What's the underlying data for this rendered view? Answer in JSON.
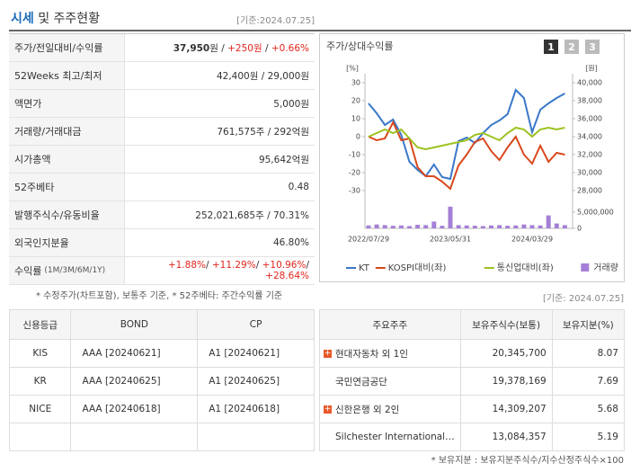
{
  "header": {
    "title_highlight": "시세",
    "title_rest": "및 주주현황",
    "date": "[기준:2024.07.25]"
  },
  "summary": {
    "rows": [
      {
        "label": "주가/전일대비/수익률",
        "value": [
          {
            "text": "37,950",
            "style": "bold"
          },
          {
            "text": "원 / "
          },
          {
            "text": "+250원",
            "style": "up"
          },
          {
            "text": " / "
          },
          {
            "text": "+0.66%",
            "style": "up"
          }
        ]
      },
      {
        "label": "52Weeks 최고/최저",
        "value": [
          {
            "text": "42,400원 / 29,000원"
          }
        ]
      },
      {
        "label": "액면가",
        "value": [
          {
            "text": "5,000원"
          }
        ]
      },
      {
        "label": "거래량/거래대금",
        "value": [
          {
            "text": "761,575주 / 292억원"
          }
        ]
      },
      {
        "label": "시가총액",
        "value": [
          {
            "text": "95,642억원"
          }
        ]
      },
      {
        "label": "52주베타",
        "value": [
          {
            "text": "0.48"
          }
        ]
      },
      {
        "label": "발행주식수/유동비율",
        "value": [
          {
            "text": "252,021,685주 / 70.31%"
          }
        ]
      },
      {
        "label": "외국인지분율",
        "value": [
          {
            "text": "46.80%"
          }
        ]
      },
      {
        "label": "수익률",
        "sublabel": "(1M/3M/6M/1Y)",
        "value": [
          {
            "text": "+1.88%",
            "style": "up"
          },
          {
            "text": "/ "
          },
          {
            "text": "+11.29%",
            "style": "up"
          },
          {
            "text": "/ "
          },
          {
            "text": "+10.96%",
            "style": "up"
          },
          {
            "text": "/ "
          },
          {
            "text": "+28.64%",
            "style": "up"
          }
        ]
      }
    ],
    "note": "* 수정주가(차트포함), 보통주 기준, * 52주베타: 주간수익률 기준",
    "date": "[기준: 2024.07.25]"
  },
  "chart_data": {
    "type": "line",
    "title": "주가/상대수익률",
    "tabs": [
      "1",
      "2",
      "3"
    ],
    "y_unit": "[%]",
    "y2_unit": "[원]",
    "categories": [
      "2022/07/29",
      null,
      null,
      null,
      null,
      null,
      null,
      null,
      null,
      null,
      "2023/05/31",
      null,
      null,
      null,
      null,
      null,
      null,
      null,
      null,
      null,
      "2024/03/29",
      null,
      null,
      null,
      null
    ],
    "ylim": [
      -35,
      35
    ],
    "yticks": [
      30,
      20,
      10,
      0,
      -10,
      -20,
      -30
    ],
    "y2lim": [
      27000,
      41000
    ],
    "y2ticks": [
      {
        "value": 40000,
        "label": "40,000"
      },
      {
        "value": 38000,
        "label": "38,000"
      },
      {
        "value": 36000,
        "label": "36,000"
      },
      {
        "value": 34000,
        "label": "34,000"
      },
      {
        "value": 32000,
        "label": "32,000"
      },
      {
        "value": 30000,
        "label": "30,000"
      },
      {
        "value": 28000,
        "label": "28,000"
      }
    ],
    "y3lim": [
      0,
      5000000
    ],
    "y3ticks": [
      {
        "value": 5000000,
        "label": "5,000,000"
      },
      0
    ],
    "series": [
      {
        "name": "KT",
        "color": "#3a78c9",
        "axis": "y2",
        "values": [
          37700,
          36600,
          35300,
          35900,
          34200,
          31200,
          30300,
          29600,
          30900,
          29500,
          29300,
          33500,
          33900,
          33300,
          34400,
          35300,
          35800,
          36500,
          39200,
          38300,
          34500,
          37000,
          37700,
          38300,
          38800
        ]
      },
      {
        "name": "KOSPI대비(좌)",
        "color": "#d9481c",
        "axis": "y",
        "values": [
          0,
          -2,
          -1,
          8,
          -2,
          -1,
          -17,
          -22,
          -22,
          -25,
          -29,
          -16,
          -10,
          -3,
          -1,
          -8,
          -13,
          -6,
          0,
          -10,
          -15,
          -5,
          -14,
          -9,
          -10
        ]
      },
      {
        "name": "통신업대비(좌)",
        "color": "#9cc21f",
        "axis": "y",
        "values": [
          0,
          2,
          4,
          2,
          4,
          -1,
          -6,
          -7,
          -6,
          -5,
          -4,
          -3,
          -2,
          1,
          2,
          0,
          -2,
          2,
          5,
          4,
          0,
          4,
          5,
          4,
          5
        ]
      },
      {
        "name": "거래량",
        "color": "#a57fd6",
        "axis": "y3",
        "type": "bar",
        "values": [
          900000,
          1200000,
          1000000,
          800000,
          900000,
          700000,
          1100000,
          1000000,
          2100000,
          800000,
          6700000,
          1000000,
          900000,
          800000,
          700000,
          900000,
          1000000,
          800000,
          900000,
          1200000,
          1000000,
          900000,
          4000000,
          1500000,
          1000000
        ]
      }
    ]
  },
  "credit": {
    "header": [
      "신용등급",
      "BOND",
      "CP"
    ],
    "rows": [
      [
        "KIS",
        "AAA [20240621]",
        "A1 [20240621]"
      ],
      [
        "KR",
        "AAA [20240625]",
        "A1 [20240625]"
      ],
      [
        "NICE",
        "AAA [20240618]",
        "A1 [20240618]"
      ]
    ]
  },
  "holders": {
    "header": [
      "주요주주",
      "보유주식수(보통)",
      "보유지분(%)"
    ],
    "rows": [
      {
        "name": "현대자동차 외 1인",
        "expand": true,
        "shares": "20,345,700",
        "pct": "8.07"
      },
      {
        "name": "국민연금공단",
        "expand": false,
        "shares": "19,378,169",
        "pct": "7.69"
      },
      {
        "name": "신한은행 외 2인",
        "expand": true,
        "shares": "14,309,207",
        "pct": "5.68"
      },
      {
        "name": "Silchester International…",
        "expand": false,
        "shares": "13,084,357",
        "pct": "5.19"
      }
    ],
    "note": "* 보유지분 : 보유지분주식수/지수산정주식수×100"
  }
}
